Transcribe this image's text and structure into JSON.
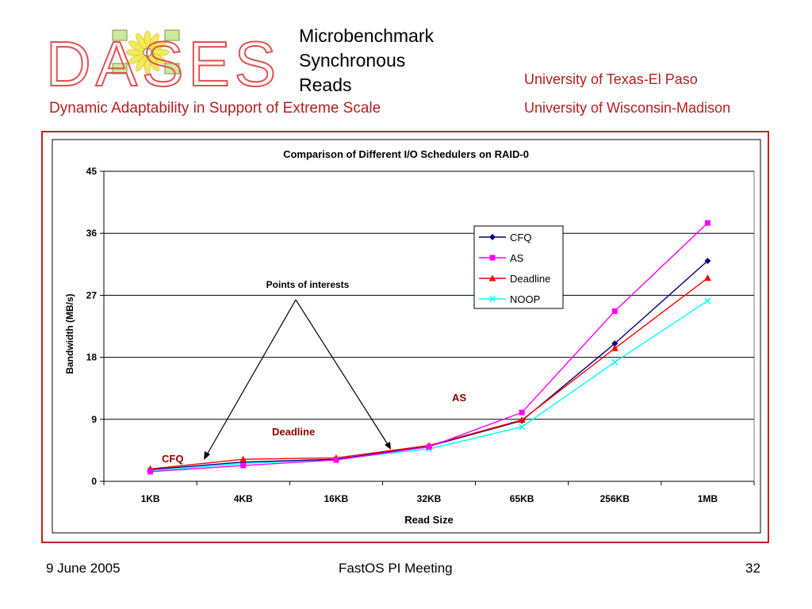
{
  "slide": {
    "title_lines": [
      "Microbenchmark",
      "Synchronous",
      "Reads"
    ],
    "subtitle": "Dynamic Adaptability in Support of Extreme Scale",
    "university1": "University of Texas-El Paso",
    "university2": "University of Wisconsin-Madison",
    "logo_text": "DASES",
    "footer": {
      "date": "9 June 2005",
      "center": "FastOS PI Meeting",
      "page": "32"
    }
  },
  "colors": {
    "accent_red": "#b41e1e",
    "frame_red": "#c81e1e",
    "annotation_red": "#8b0000"
  },
  "chart_data": {
    "type": "line",
    "title": "Comparison of Different I/O Schedulers on RAID-0",
    "xlabel": "Read Size",
    "ylabel": "Bandwidth (MB/s)",
    "categories": [
      "1KB",
      "4KB",
      "16KB",
      "32KB",
      "65KB",
      "256KB",
      "1MB"
    ],
    "ylim": [
      0,
      45
    ],
    "yticks": [
      0,
      9,
      18,
      27,
      36,
      45
    ],
    "grid": true,
    "legend_position": "top-right",
    "series": [
      {
        "name": "CFQ",
        "color": "#000080",
        "marker": "diamond",
        "values": [
          1.7,
          2.8,
          3.2,
          5.1,
          8.8,
          20.0,
          32.0
        ]
      },
      {
        "name": "AS",
        "color": "#ff00ff",
        "marker": "square",
        "values": [
          1.4,
          2.3,
          3.1,
          5.0,
          10.0,
          24.7,
          37.5
        ]
      },
      {
        "name": "Deadline",
        "color": "#ff0000",
        "marker": "triangle",
        "values": [
          1.8,
          3.2,
          3.4,
          5.2,
          8.9,
          19.3,
          29.5
        ]
      },
      {
        "name": "NOOP",
        "color": "#00ffff",
        "marker": "x",
        "values": [
          1.5,
          2.6,
          3.2,
          4.7,
          7.9,
          17.3,
          26.2
        ]
      }
    ],
    "annotations": {
      "points_of_interest": "Points of interests",
      "cfq": "CFQ",
      "deadline": "Deadline",
      "as": "AS"
    }
  }
}
